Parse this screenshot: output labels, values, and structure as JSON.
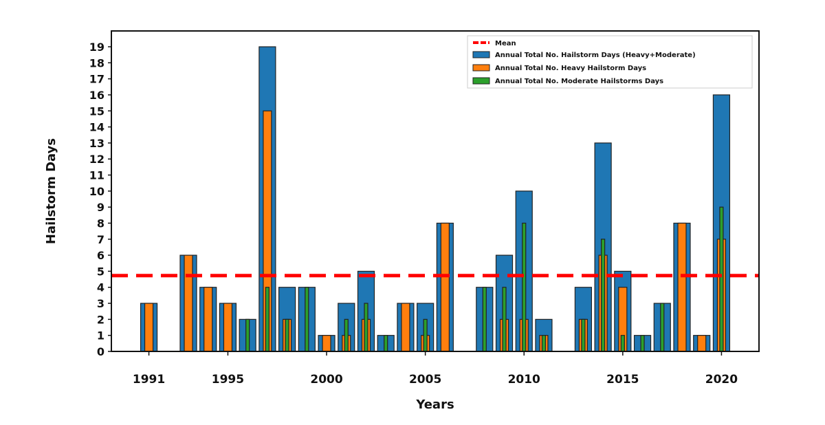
{
  "chart_data": {
    "type": "bar",
    "xlabel": "Years",
    "ylabel": "Hailstorm Days",
    "ylim": [
      0,
      20
    ],
    "yticks": [
      0,
      1,
      2,
      3,
      4,
      5,
      6,
      7,
      8,
      9,
      10,
      11,
      12,
      13,
      14,
      15,
      16,
      17,
      18,
      19
    ],
    "xticks": [
      1991,
      1995,
      2000,
      2005,
      2010,
      2015,
      2020
    ],
    "xlim": [
      1989.1,
      2021.9
    ],
    "legend_position": "top-right",
    "years": [
      1991,
      1993,
      1994,
      1995,
      1996,
      1997,
      1998,
      1999,
      2000,
      2001,
      2002,
      2003,
      2004,
      2005,
      2006,
      2008,
      2009,
      2010,
      2011,
      2013,
      2014,
      2015,
      2016,
      2017,
      2018,
      2019,
      2020
    ],
    "series": [
      {
        "name": "Annual Total No. Hailstorm Days (Heavy+Moderate)",
        "color": "#1f77b4",
        "values": [
          3,
          6,
          4,
          3,
          2,
          19,
          4,
          4,
          1,
          3,
          5,
          1,
          3,
          3,
          8,
          4,
          6,
          10,
          2,
          4,
          13,
          5,
          1,
          3,
          8,
          1,
          16
        ]
      },
      {
        "name": "Annual Total No. Heavy Hailstorm Days",
        "color": "#ff7f0e",
        "values": [
          3,
          6,
          4,
          3,
          0,
          15,
          2,
          0,
          1,
          1,
          2,
          0,
          3,
          1,
          8,
          0,
          2,
          2,
          1,
          2,
          6,
          4,
          0,
          0,
          8,
          1,
          7
        ]
      },
      {
        "name": "Annual Total No. Moderate Hailstorms Days",
        "color": "#2ca02c",
        "values": [
          0,
          0,
          0,
          0,
          2,
          4,
          2,
          4,
          0,
          2,
          3,
          1,
          0,
          2,
          0,
          4,
          4,
          8,
          1,
          2,
          7,
          1,
          1,
          3,
          0,
          0,
          9
        ]
      }
    ],
    "mean": {
      "name": "Mean",
      "value": 4.73,
      "color": "#ff0000",
      "style": "dashed"
    }
  }
}
